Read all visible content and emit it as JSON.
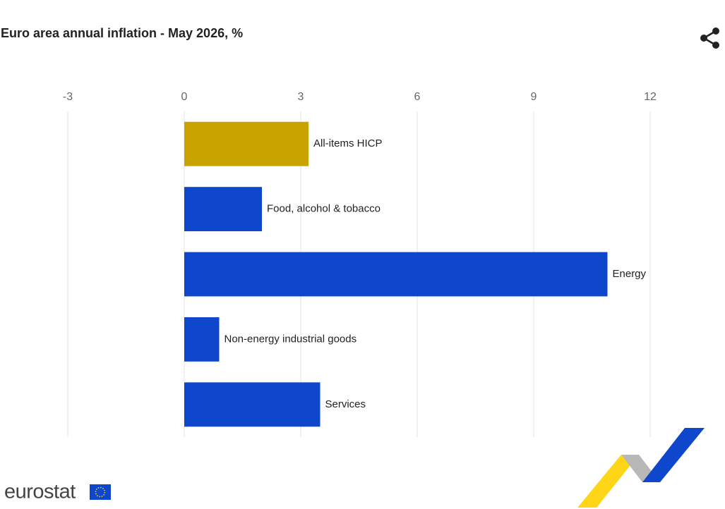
{
  "chart_data": {
    "type": "bar",
    "orientation": "horizontal",
    "title": "Euro area annual inflation - May 2026, %",
    "categories": [
      "All-items HICP",
      "Food, alcohol & tobacco",
      "Energy",
      "Non-energy industrial goods",
      "Services"
    ],
    "values": [
      3.2,
      2.0,
      10.9,
      0.9,
      3.5
    ],
    "colors": [
      "#c9a300",
      "#0e47cb",
      "#0e47cb",
      "#0e47cb",
      "#0e47cb"
    ],
    "xlim": [
      -3,
      12
    ],
    "xticks": [
      -3,
      0,
      3,
      6,
      9,
      12
    ],
    "grid": true,
    "logo_text": "eurostat"
  }
}
